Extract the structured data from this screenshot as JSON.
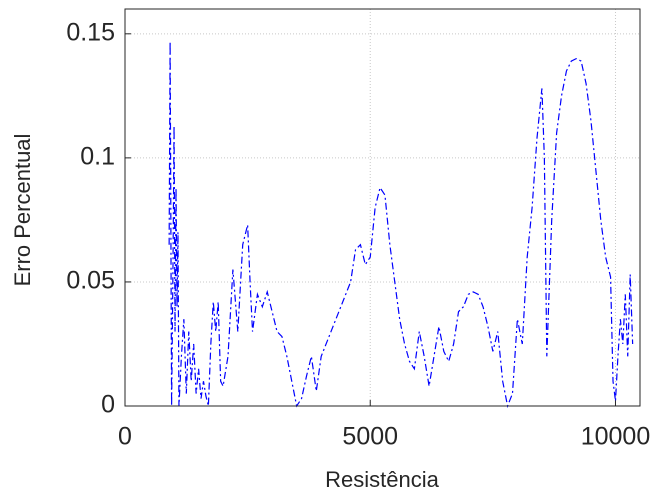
{
  "chart_data": {
    "type": "line",
    "x_label": "Resistência",
    "y_label": "Erro Percentual",
    "x": [
      900,
      920,
      950,
      980,
      1000,
      1020,
      1040,
      1060,
      1080,
      1100,
      1150,
      1200,
      1250,
      1300,
      1350,
      1400,
      1450,
      1500,
      1550,
      1600,
      1650,
      1700,
      1750,
      1800,
      1850,
      1900,
      1950,
      2000,
      2100,
      2200,
      2300,
      2400,
      2500,
      2550,
      2600,
      2700,
      2800,
      2900,
      3000,
      3100,
      3200,
      3300,
      3400,
      3500,
      3600,
      3700,
      3800,
      3900,
      4000,
      4200,
      4400,
      4600,
      4700,
      4800,
      4900,
      5000,
      5100,
      5200,
      5300,
      5400,
      5500,
      5600,
      5700,
      5800,
      5900,
      6000,
      6100,
      6200,
      6300,
      6400,
      6500,
      6600,
      6700,
      6800,
      6900,
      7000,
      7100,
      7200,
      7300,
      7400,
      7500,
      7600,
      7700,
      7800,
      7900,
      8000,
      8100,
      8200,
      8300,
      8400,
      8500,
      8550,
      8600,
      8700,
      8800,
      8900,
      9000,
      9100,
      9200,
      9300,
      9400,
      9500,
      9600,
      9700,
      9800,
      9900,
      9950,
      10000,
      10050,
      10100,
      10150,
      10200,
      10250,
      10300,
      10350
    ],
    "series": [
      {
        "color": "#0000ff",
        "values": [
          0.065,
          0.147,
          0.0,
          0.06,
          0.113,
          0.03,
          0.088,
          0.04,
          0.07,
          0.0,
          0.02,
          0.035,
          0.005,
          0.03,
          0.01,
          0.025,
          0.005,
          0.015,
          0.003,
          0.01,
          0.004,
          0.0,
          0.025,
          0.042,
          0.03,
          0.042,
          0.01,
          0.008,
          0.02,
          0.055,
          0.03,
          0.065,
          0.073,
          0.05,
          0.03,
          0.045,
          0.04,
          0.046,
          0.038,
          0.03,
          0.028,
          0.02,
          0.01,
          0.0,
          0.003,
          0.012,
          0.02,
          0.006,
          0.02,
          0.03,
          0.04,
          0.05,
          0.063,
          0.065,
          0.057,
          0.06,
          0.08,
          0.088,
          0.085,
          0.065,
          0.05,
          0.035,
          0.025,
          0.018,
          0.015,
          0.03,
          0.02,
          0.008,
          0.02,
          0.032,
          0.022,
          0.018,
          0.025,
          0.038,
          0.04,
          0.045,
          0.046,
          0.045,
          0.04,
          0.032,
          0.022,
          0.03,
          0.01,
          0.0,
          0.005,
          0.035,
          0.025,
          0.06,
          0.08,
          0.108,
          0.128,
          0.1,
          0.02,
          0.075,
          0.11,
          0.125,
          0.135,
          0.139,
          0.14,
          0.139,
          0.13,
          0.115,
          0.095,
          0.075,
          0.06,
          0.052,
          0.01,
          0.002,
          0.02,
          0.035,
          0.025,
          0.045,
          0.02,
          0.053,
          0.025
        ]
      }
    ],
    "xlim": [
      0,
      10500
    ],
    "ylim": [
      0,
      0.16
    ],
    "xticks": [
      0,
      5000,
      10000
    ],
    "yticks": [
      0,
      0.05,
      0.1,
      0.15
    ],
    "grid": true
  }
}
